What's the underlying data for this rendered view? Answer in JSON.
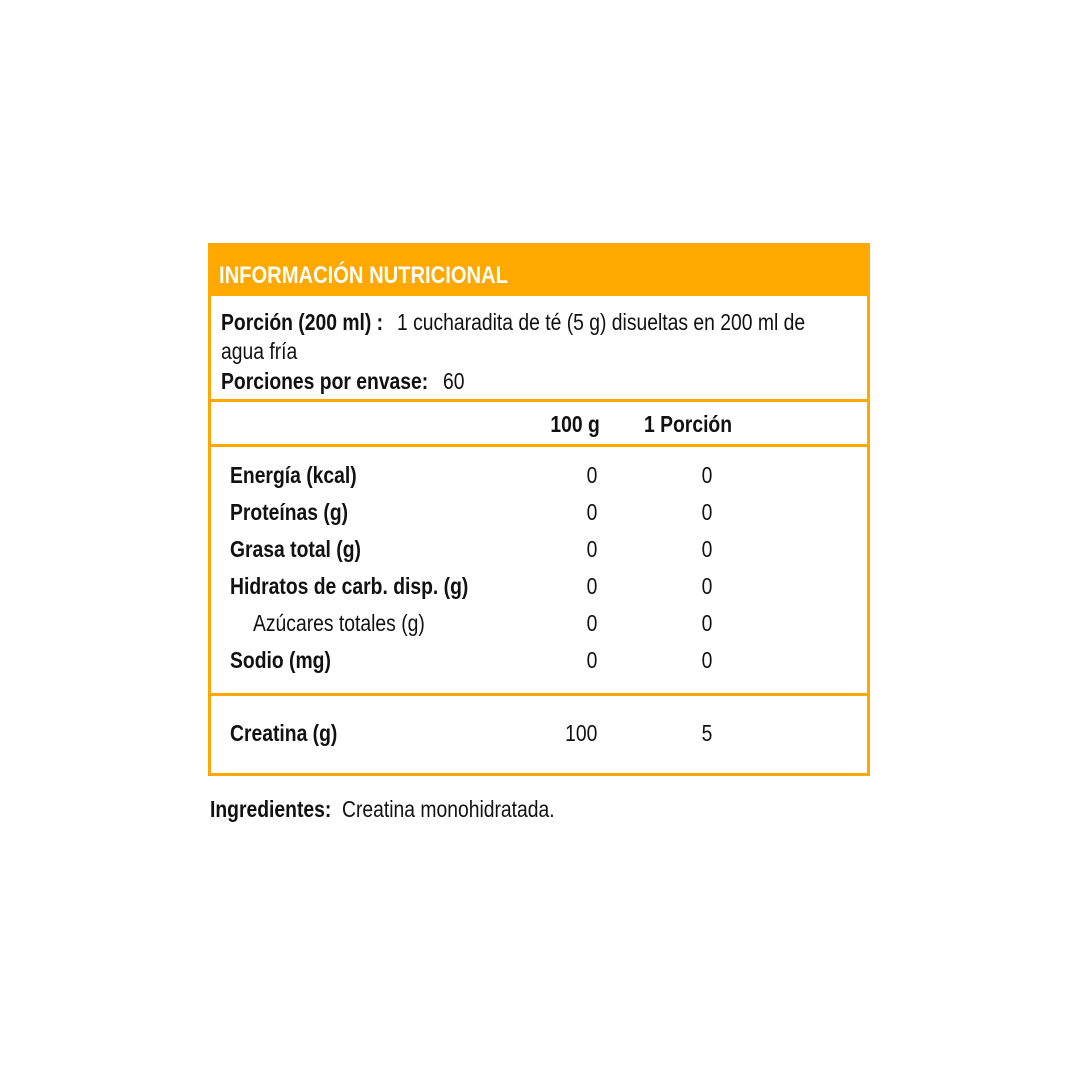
{
  "label": {
    "title": "INFORMACIÓN NUTRICIONAL",
    "serving_label": "Porción (200 ml) :",
    "serving_text_line1": "1 cucharadita de té (5 g) disueltas en 200 ml de",
    "serving_text_line2": "agua fría",
    "servings_label": "Porciones  por  envase:",
    "servings_value": "60",
    "columns": [
      "100 g",
      "1 Porción"
    ],
    "rows": [
      {
        "name": "Energía (kcal)",
        "per100": "0",
        "per_serving": "0",
        "indent": false
      },
      {
        "name": "Proteínas  (g)",
        "per100": "0",
        "per_serving": "0",
        "indent": false
      },
      {
        "name": "Grasa total (g)",
        "per100": "0",
        "per_serving": "0",
        "indent": false
      },
      {
        "name": "Hidratos de carb. disp. (g)",
        "per100": "0",
        "per_serving": "0",
        "indent": false
      },
      {
        "name": "Azúcares totales (g)",
        "per100": "0",
        "per_serving": "0",
        "indent": true
      },
      {
        "name": "Sodio (mg)",
        "per100": "0",
        "per_serving": "0",
        "indent": false
      }
    ],
    "extra_row": {
      "name": "Creatina  (g)",
      "per100": "100",
      "per_serving": "5"
    },
    "accent_color": "#FFA800"
  },
  "ingredients": {
    "label": "Ingredientes:",
    "text": "Creatina  monohidratada."
  }
}
